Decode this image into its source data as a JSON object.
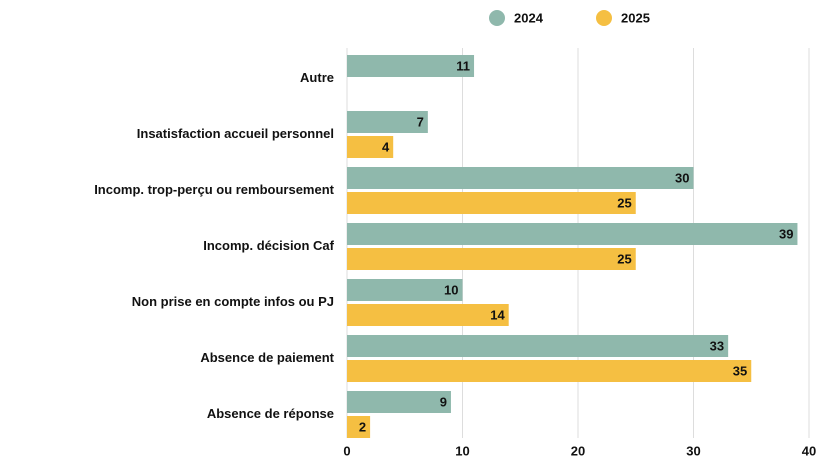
{
  "chart_data": {
    "type": "bar",
    "orientation": "horizontal",
    "categories": [
      "Autre",
      "Insatisfaction accueil personnel",
      "Incomp. trop-perçu ou remboursement",
      "Incomp. décision Caf",
      "Non prise en compte infos ou PJ",
      "Absence de paiement",
      "Absence de réponse"
    ],
    "series": [
      {
        "name": "2024",
        "color": "#8fb8ac",
        "values": [
          11,
          7,
          30,
          39,
          10,
          33,
          9
        ]
      },
      {
        "name": "2025",
        "color": "#f5bf42",
        "values": [
          null,
          4,
          25,
          25,
          14,
          35,
          2
        ]
      }
    ],
    "xlim": [
      0,
      40
    ],
    "xticks": [
      0,
      10,
      20,
      30,
      40
    ],
    "grid": true,
    "legend": "top"
  }
}
